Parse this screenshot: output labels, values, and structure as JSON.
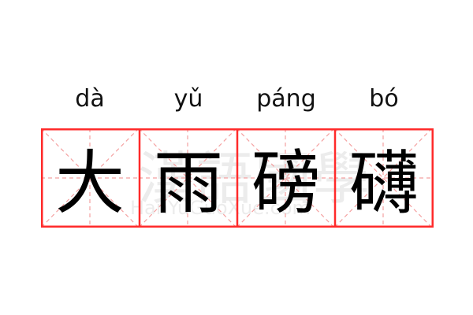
{
  "entries": [
    {
      "pinyin": "dà",
      "char": "大"
    },
    {
      "pinyin": "yǔ",
      "char": "雨"
    },
    {
      "pinyin": "páng",
      "char": "磅"
    },
    {
      "pinyin": "bó",
      "char": "礴"
    }
  ],
  "watermark": {
    "chinese": "漢語國學",
    "latin": "HanYuGuoXue.com"
  },
  "colors": {
    "border": "#ff2a2a",
    "guide": "#f4a0a0",
    "text": "#000000"
  }
}
